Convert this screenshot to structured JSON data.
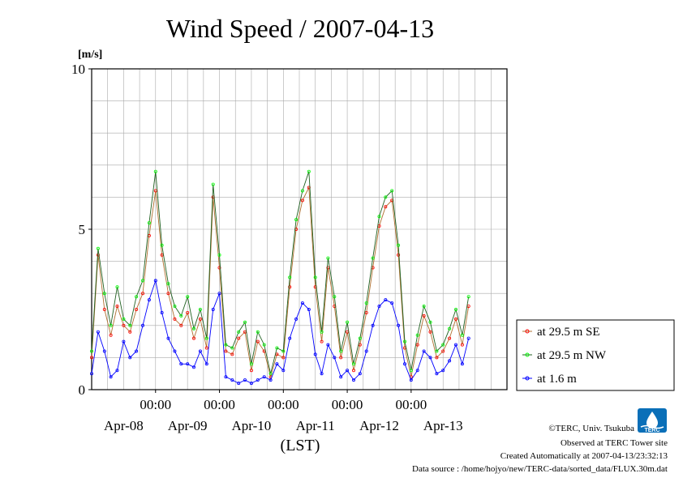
{
  "title": "Wind Speed / 2007-04-13",
  "unit_label": "[m/s]",
  "x_axis_label": "(LST)",
  "footer": {
    "copyright": "©TERC, Univ. Tsukuba",
    "observed": "Observed at TERC Tower site",
    "created": "Created Automatically at 2007-04-13/23:32:13",
    "source": "Data source : /home/hojyo/new/TERC-data/sorted_data/FLUX.30m.dat"
  },
  "logo": {
    "text": "TERC",
    "icon": "terc-logo-icon"
  },
  "colors": {
    "se": "#ff0000",
    "nw": "#00ff00",
    "low": "#0000ff",
    "se_line": "#b07030",
    "nw_line": "#206020",
    "low_line": "#0000ff",
    "grid": "#aaaaaa"
  },
  "chart_data": {
    "type": "line",
    "title": "Wind Speed / 2007-04-13",
    "ylabel": "[m/s]",
    "xlabel": "(LST)",
    "ylim": [
      0,
      10
    ],
    "y_ticks": [
      "0",
      "5",
      "10"
    ],
    "y_tick_values": [
      0,
      5,
      10
    ],
    "xlim": [
      0,
      6.5
    ],
    "x_time_ticks": [
      "00:00",
      "00:00",
      "00:00",
      "00:00",
      "00:00"
    ],
    "x_time_tick_positions": [
      1,
      2,
      3,
      4,
      5
    ],
    "x_date_labels": [
      "Apr-08",
      "Apr-09",
      "Apr-10",
      "Apr-11",
      "Apr-12",
      "Apr-13"
    ],
    "x_date_positions": [
      0.5,
      1.5,
      2.5,
      3.5,
      4.5,
      5.5
    ],
    "x_grid_step": 0.25,
    "y_grid_step": 1,
    "grid": true,
    "legend_position": "right",
    "series": [
      {
        "name": "at 29.5 m SE",
        "color": "#ff0000",
        "x": [
          0.0,
          0.1,
          0.2,
          0.3,
          0.4,
          0.5,
          0.6,
          0.7,
          0.8,
          0.9,
          1.0,
          1.1,
          1.2,
          1.3,
          1.4,
          1.5,
          1.6,
          1.7,
          1.8,
          1.9,
          2.0,
          2.1,
          2.2,
          2.3,
          2.4,
          2.5,
          2.6,
          2.7,
          2.8,
          2.9,
          3.0,
          3.1,
          3.2,
          3.3,
          3.4,
          3.5,
          3.6,
          3.7,
          3.8,
          3.9,
          4.0,
          4.1,
          4.2,
          4.3,
          4.4,
          4.5,
          4.6,
          4.7,
          4.8,
          4.9,
          5.0,
          5.1,
          5.2,
          5.3,
          5.4,
          5.5,
          5.6,
          5.7,
          5.8,
          5.9
        ],
        "y": [
          1.0,
          4.2,
          2.5,
          1.7,
          2.6,
          2.0,
          1.8,
          2.5,
          3.0,
          4.8,
          6.2,
          4.2,
          3.0,
          2.2,
          2.0,
          2.4,
          1.6,
          2.2,
          1.3,
          6.0,
          3.8,
          1.2,
          1.1,
          1.6,
          1.8,
          0.6,
          1.5,
          1.2,
          0.4,
          1.1,
          1.0,
          3.2,
          5.0,
          5.9,
          6.3,
          3.2,
          1.5,
          3.8,
          2.6,
          1.0,
          1.8,
          0.6,
          1.4,
          2.4,
          3.8,
          5.1,
          5.7,
          5.9,
          4.2,
          1.3,
          0.4,
          1.4,
          2.3,
          1.8,
          1.0,
          1.2,
          1.6,
          2.2,
          1.4,
          2.6
        ]
      },
      {
        "name": "at 29.5 m NW",
        "color": "#00ff00",
        "x": [
          0.0,
          0.1,
          0.2,
          0.3,
          0.4,
          0.5,
          0.6,
          0.7,
          0.8,
          0.9,
          1.0,
          1.1,
          1.2,
          1.3,
          1.4,
          1.5,
          1.6,
          1.7,
          1.8,
          1.9,
          2.0,
          2.1,
          2.2,
          2.3,
          2.4,
          2.5,
          2.6,
          2.7,
          2.8,
          2.9,
          3.0,
          3.1,
          3.2,
          3.3,
          3.4,
          3.5,
          3.6,
          3.7,
          3.8,
          3.9,
          4.0,
          4.1,
          4.2,
          4.3,
          4.4,
          4.5,
          4.6,
          4.7,
          4.8,
          4.9,
          5.0,
          5.1,
          5.2,
          5.3,
          5.4,
          5.5,
          5.6,
          5.7,
          5.8,
          5.9
        ],
        "y": [
          1.2,
          4.4,
          3.0,
          2.0,
          3.2,
          2.2,
          2.0,
          2.9,
          3.4,
          5.2,
          6.8,
          4.5,
          3.3,
          2.6,
          2.3,
          2.9,
          1.9,
          2.5,
          1.6,
          6.4,
          4.2,
          1.4,
          1.3,
          1.8,
          2.1,
          0.8,
          1.8,
          1.4,
          0.5,
          1.3,
          1.2,
          3.5,
          5.3,
          6.2,
          6.8,
          3.5,
          1.8,
          4.1,
          2.9,
          1.2,
          2.1,
          0.8,
          1.6,
          2.7,
          4.1,
          5.4,
          6.0,
          6.2,
          4.5,
          1.5,
          0.6,
          1.7,
          2.6,
          2.1,
          1.2,
          1.4,
          1.9,
          2.5,
          1.7,
          2.9
        ]
      },
      {
        "name": "at 1.6 m",
        "color": "#0000ff",
        "x": [
          0.0,
          0.1,
          0.2,
          0.3,
          0.4,
          0.5,
          0.6,
          0.7,
          0.8,
          0.9,
          1.0,
          1.1,
          1.2,
          1.3,
          1.4,
          1.5,
          1.6,
          1.7,
          1.8,
          1.9,
          2.0,
          2.1,
          2.2,
          2.3,
          2.4,
          2.5,
          2.6,
          2.7,
          2.8,
          2.9,
          3.0,
          3.1,
          3.2,
          3.3,
          3.4,
          3.5,
          3.6,
          3.7,
          3.8,
          3.9,
          4.0,
          4.1,
          4.2,
          4.3,
          4.4,
          4.5,
          4.6,
          4.7,
          4.8,
          4.9,
          5.0,
          5.1,
          5.2,
          5.3,
          5.4,
          5.5,
          5.6,
          5.7,
          5.8,
          5.9
        ],
        "y": [
          0.5,
          1.8,
          1.2,
          0.4,
          0.6,
          1.5,
          1.0,
          1.2,
          2.0,
          2.8,
          3.4,
          2.4,
          1.6,
          1.2,
          0.8,
          0.8,
          0.7,
          1.2,
          0.8,
          2.5,
          3.0,
          0.4,
          0.3,
          0.2,
          0.3,
          0.2,
          0.3,
          0.4,
          0.3,
          0.8,
          0.6,
          1.6,
          2.2,
          2.7,
          2.5,
          1.1,
          0.5,
          1.4,
          1.0,
          0.4,
          0.6,
          0.3,
          0.5,
          1.2,
          2.0,
          2.6,
          2.8,
          2.7,
          2.0,
          0.8,
          0.3,
          0.6,
          1.2,
          1.0,
          0.5,
          0.6,
          0.9,
          1.4,
          0.8,
          1.6
        ]
      }
    ]
  }
}
